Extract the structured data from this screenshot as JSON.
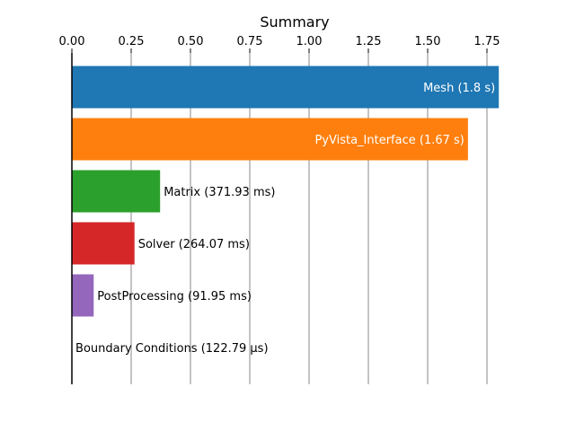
{
  "chart_data": {
    "type": "bar",
    "orientation": "horizontal",
    "title": "Summary",
    "xlabel": "",
    "ylabel": "",
    "x_axis_position": "top",
    "xlim": [
      0,
      1.8
    ],
    "xticks": [
      "0.00",
      "0.25",
      "0.50",
      "0.75",
      "1.00",
      "1.25",
      "1.50",
      "1.75"
    ],
    "grid": "vertical",
    "categories": [
      "Mesh",
      "PyVista_Interface",
      "Matrix",
      "Solver",
      "PostProcessing",
      "Boundary Conditions"
    ],
    "values": [
      1.8,
      1.67,
      0.37193,
      0.26407,
      0.09195,
      0.00012279
    ],
    "bar_labels": [
      "Mesh (1.8 s)",
      "PyVista_Interface (1.67 s)",
      "Matrix (371.93 ms)",
      "Solver (264.07 ms)",
      "PostProcessing (91.95 ms)",
      "Boundary Conditions (122.79 µs)"
    ],
    "label_inside": [
      true,
      true,
      false,
      false,
      false,
      false
    ],
    "colors": [
      "#1f77b4",
      "#ff7f0e",
      "#2ca02c",
      "#d62728",
      "#9467bd",
      "#8c564b"
    ]
  }
}
